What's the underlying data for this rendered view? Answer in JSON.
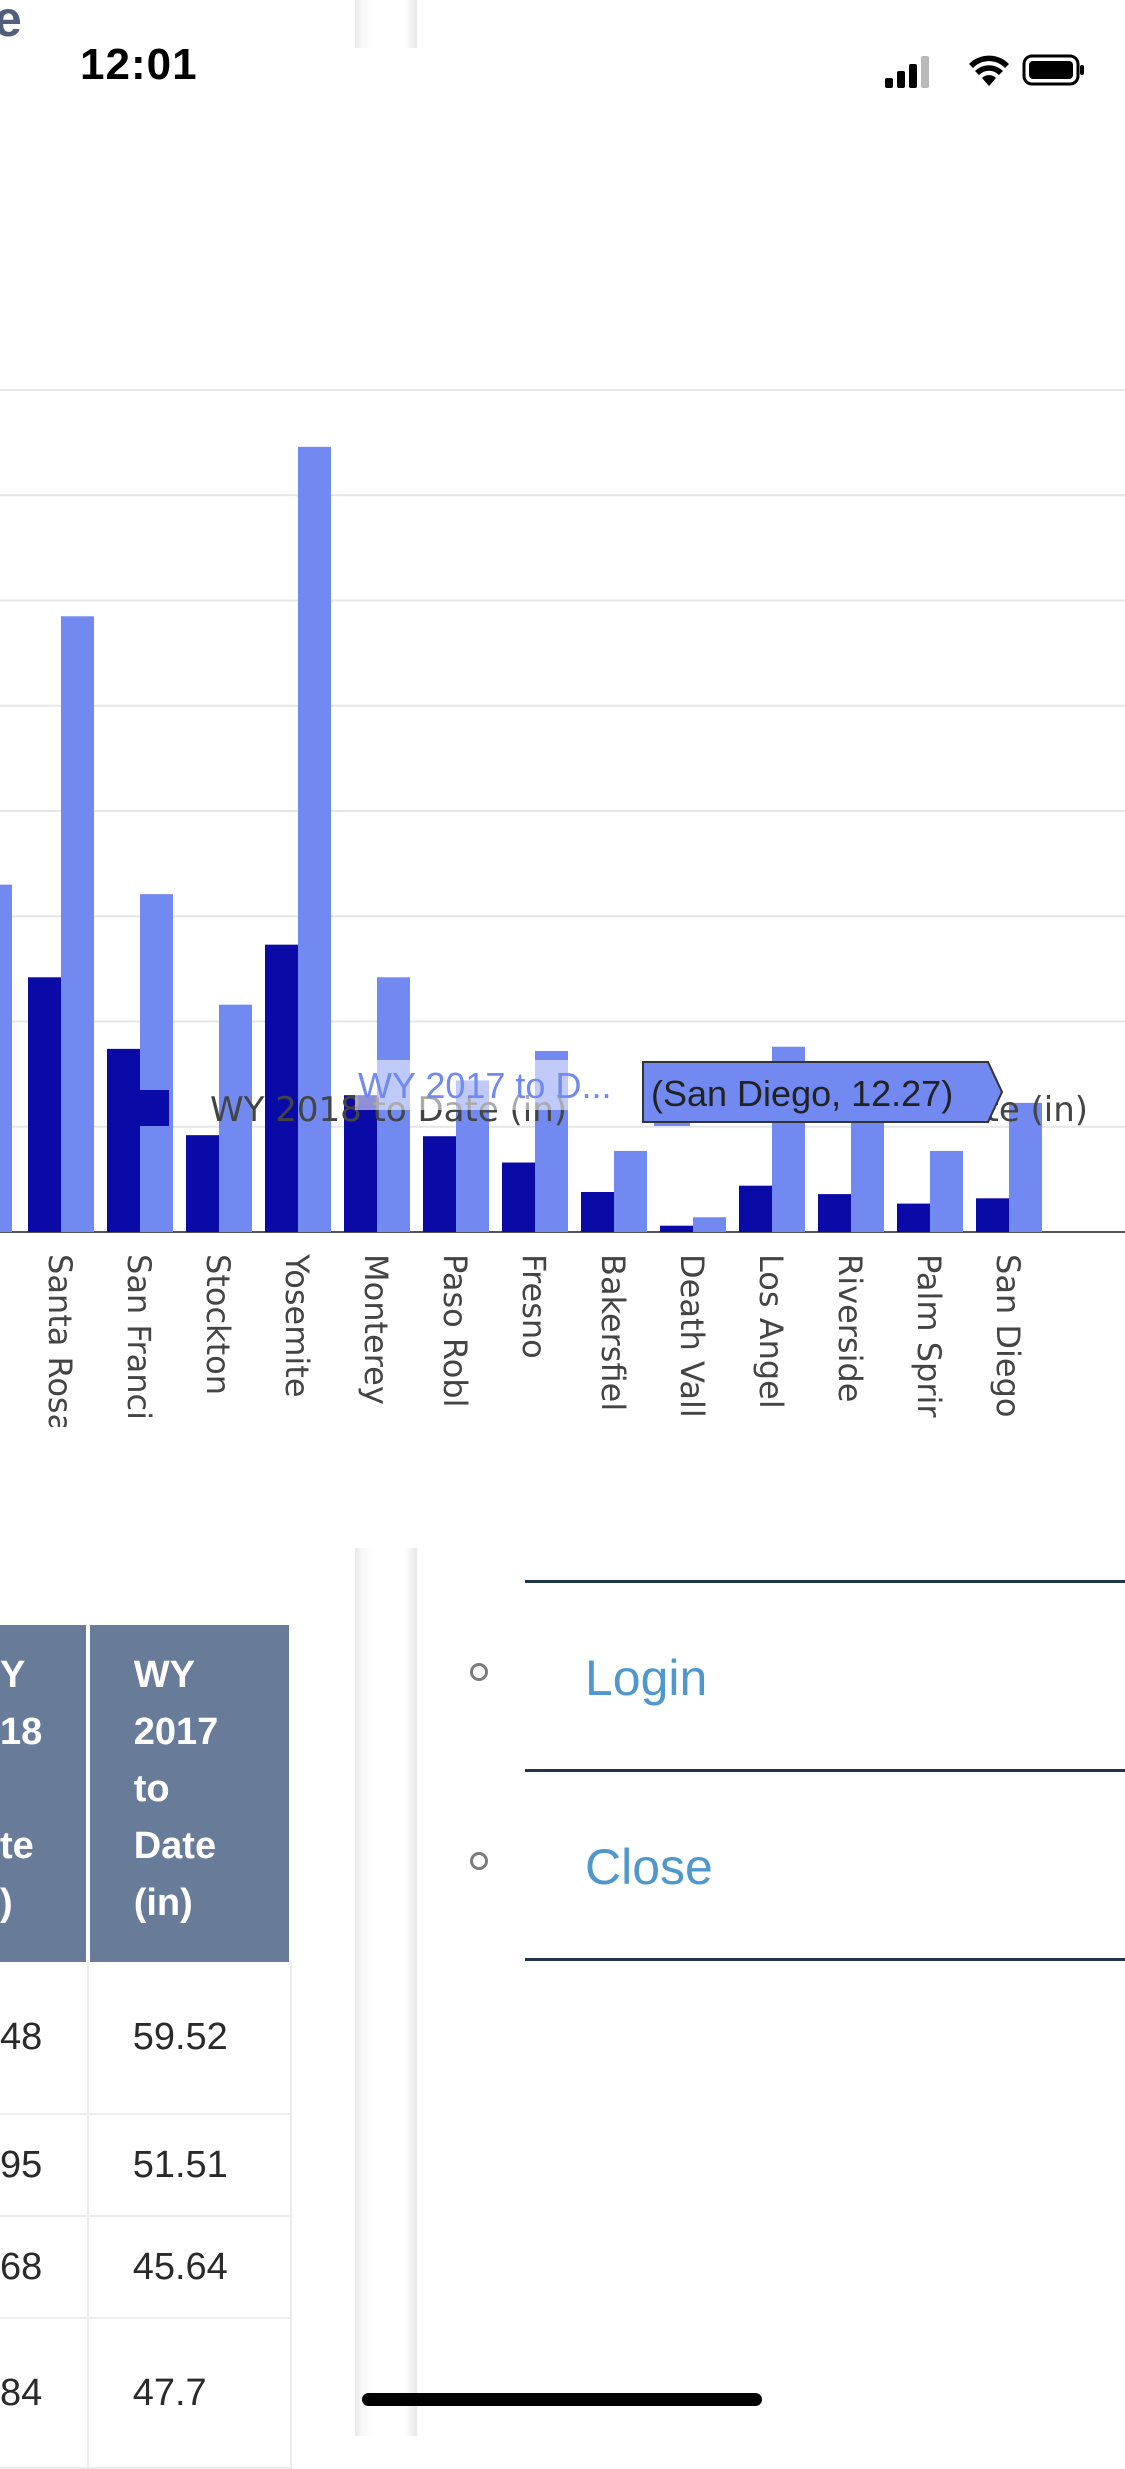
{
  "status_bar": {
    "time": "12:01"
  },
  "background_page": {
    "title_fragment": "e"
  },
  "chart_data": {
    "type": "bar",
    "categories": [
      "Santa Rosa",
      "San Franci",
      "Stockton",
      "Yosemite",
      "Monterey",
      "Paso Robl",
      "Fresno",
      "Bakersfiel",
      "Death Vall",
      "Los Angel",
      "Riverside",
      "Palm Sprir",
      "San Diego"
    ],
    "series": [
      {
        "name": "WY 2018 to Date (in)",
        "color": "#0a0aa6",
        "values": [
          24.2,
          17.4,
          9.2,
          27.3,
          13.0,
          9.1,
          6.6,
          3.8,
          0.6,
          4.4,
          3.6,
          2.7,
          3.2
        ]
      },
      {
        "name": "WY 2017 to Date (in)",
        "color": "#7189f0",
        "values": [
          58.5,
          32.1,
          21.6,
          74.6,
          24.2,
          14.4,
          17.2,
          7.7,
          1.4,
          17.6,
          12.2,
          7.7,
          12.27
        ]
      }
    ],
    "partial_left_bar_value": 33.0,
    "ylim": [
      0,
      80
    ],
    "grid": true,
    "legend": "bottom",
    "tooltip": {
      "series_label": "WY 2017 to D...",
      "point_label": "(San Diego, 12.27)"
    }
  },
  "table": {
    "headers": [
      [
        "Y",
        "18",
        "",
        "te",
        ")"
      ],
      [
        "WY",
        "2017",
        "to",
        "Date",
        "(in)"
      ]
    ],
    "rows": [
      [
        "48",
        "59.52"
      ],
      [
        "95",
        "51.51"
      ],
      [
        "68",
        "45.64"
      ],
      [
        "84",
        "47.7"
      ]
    ]
  },
  "menu": {
    "items": [
      {
        "label": "Login"
      },
      {
        "label": "Close"
      }
    ]
  }
}
